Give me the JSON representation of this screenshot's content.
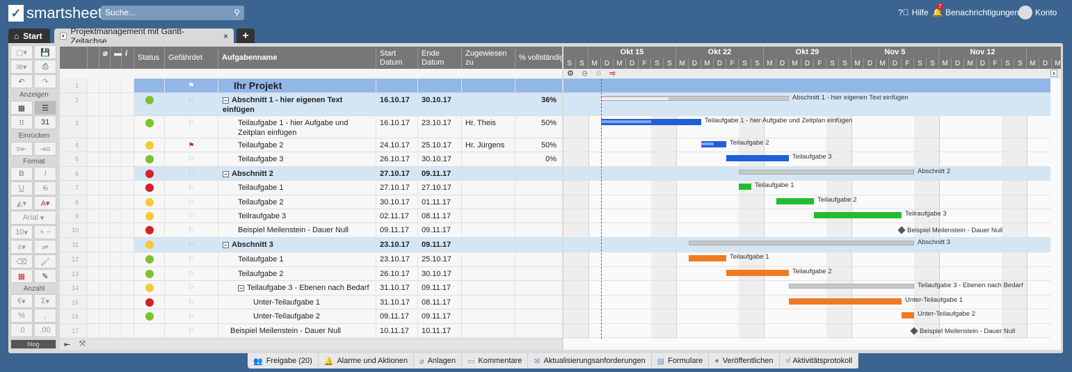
{
  "app": {
    "logo": "smartsheet",
    "search_placeholder": "Suche...",
    "help": "Hilfe",
    "notifications": "Benachrichtigungen",
    "notif_count": "7",
    "account": "Konto"
  },
  "tabs": {
    "home": "Start",
    "sheet": "Projektmanagement mit Gantt-Zeitachse",
    "close": "×",
    "add": "+"
  },
  "toolbar": {
    "view_label": "Anzeigen",
    "indent_label": "Einrücken",
    "format_label": "Format",
    "font": "Arial",
    "size": "10",
    "number_label": "Anzahl",
    "bold": "B",
    "italic": "I",
    "underline": "U",
    "strike": "S",
    "currency": "€",
    "sum": "Σ",
    "percent": "%",
    "comma": ",",
    "dec_less": ".0",
    "dec_more": ".00",
    "more": "blog"
  },
  "columns": {
    "status": "Status",
    "flag": "Gefährdet",
    "name": "Aufgabenname",
    "start": "Start Datum",
    "end": "Ende Datum",
    "assigned": "Zugewiesen zu",
    "pct": "% vollständig",
    "info": "i"
  },
  "colors": {
    "green": "#7dc12e",
    "yellow": "#f5c937",
    "red": "#d2232a",
    "blue": "#1f5fd9",
    "greenbar": "#22bb33",
    "orange": "#f07a22",
    "section": "#c8c8c8",
    "project_row": "#92b6e8",
    "section_row": "#d4e6f4"
  },
  "rows": [
    {
      "num": "1",
      "type": "project",
      "status": "",
      "flag": "white",
      "name": "Ihr Projekt",
      "level": 0,
      "start": "",
      "end": "",
      "assigned": "",
      "pct": ""
    },
    {
      "num": "2",
      "type": "section",
      "status": "green",
      "flag": "outline",
      "name": "Abschnitt 1 - hier eigenen Text einfügen",
      "level": 0,
      "start": "16.10.17",
      "end": "30.10.17",
      "assigned": "",
      "pct": "36%",
      "bar": "section",
      "progress": 0.36
    },
    {
      "num": "3",
      "type": "task",
      "status": "green",
      "flag": "outline",
      "name": "Teilaufgabe 1 - hier Aufgabe und Zeitplan einfügen",
      "level": 1,
      "start": "16.10.17",
      "end": "23.10.17",
      "assigned": "Hr. Theis",
      "pct": "50%",
      "bar": "blue",
      "progress": 0.5
    },
    {
      "num": "4",
      "type": "task",
      "status": "yellow",
      "flag": "red",
      "name": "Teilaufgabe 2",
      "level": 1,
      "start": "24.10.17",
      "end": "25.10.17",
      "assigned": "Hr. Jürgens",
      "pct": "50%",
      "bar": "blue",
      "progress": 0.5
    },
    {
      "num": "5",
      "type": "task",
      "status": "green",
      "flag": "outline",
      "name": "Teilaufgabe 3",
      "level": 1,
      "start": "26.10.17",
      "end": "30.10.17",
      "assigned": "",
      "pct": "0%",
      "bar": "blue",
      "progress": 0
    },
    {
      "num": "6",
      "type": "section",
      "status": "red",
      "flag": "outline",
      "name": "Abschnitt 2",
      "level": 0,
      "start": "27.10.17",
      "end": "09.11.17",
      "assigned": "",
      "pct": "",
      "bar": "section",
      "progress": 0
    },
    {
      "num": "7",
      "type": "task",
      "status": "red",
      "flag": "outline",
      "name": "Teilaufgabe 1",
      "level": 1,
      "start": "27.10.17",
      "end": "27.10.17",
      "assigned": "",
      "pct": "",
      "bar": "greenbar",
      "progress": 0
    },
    {
      "num": "8",
      "type": "task",
      "status": "yellow",
      "flag": "outline",
      "name": "Teilaufgabe 2",
      "level": 1,
      "start": "30.10.17",
      "end": "01.11.17",
      "assigned": "",
      "pct": "",
      "bar": "greenbar",
      "progress": 0
    },
    {
      "num": "9",
      "type": "task",
      "status": "yellow",
      "flag": "outline",
      "name": "Teilraufgabe 3",
      "level": 1,
      "start": "02.11.17",
      "end": "08.11.17",
      "assigned": "",
      "pct": "",
      "bar": "greenbar",
      "progress": 0
    },
    {
      "num": "10",
      "type": "milestone",
      "status": "red",
      "flag": "outline",
      "name": "Beispiel Meilenstein - Dauer Null",
      "level": 1,
      "start": "09.11.17",
      "end": "09.11.17",
      "assigned": "",
      "pct": "",
      "bar": "milestone"
    },
    {
      "num": "11",
      "type": "section",
      "status": "yellow",
      "flag": "outline",
      "name": "Abschnitt 3",
      "level": 0,
      "start": "23.10.17",
      "end": "09.11.17",
      "assigned": "",
      "pct": "",
      "bar": "section",
      "progress": 0
    },
    {
      "num": "12",
      "type": "task",
      "status": "green",
      "flag": "outline",
      "name": "Teilaufgabe 1",
      "level": 1,
      "start": "23.10.17",
      "end": "25.10.17",
      "assigned": "",
      "pct": "",
      "bar": "orange",
      "progress": 0
    },
    {
      "num": "13",
      "type": "task",
      "status": "green",
      "flag": "outline",
      "name": "Teilaufgabe 2",
      "level": 1,
      "start": "26.10.17",
      "end": "30.10.17",
      "assigned": "",
      "pct": "",
      "bar": "orange",
      "progress": 0
    },
    {
      "num": "14",
      "type": "subsection",
      "status": "yellow",
      "flag": "outline",
      "name": "Teilaufgabe 3 - Ebenen nach Bedarf",
      "level": 1,
      "start": "31.10.17",
      "end": "09.11.17",
      "assigned": "",
      "pct": "",
      "bar": "section",
      "progress": 0
    },
    {
      "num": "15",
      "type": "task",
      "status": "red",
      "flag": "outline",
      "name": "Unter-Teilaufgabe 1",
      "level": 2,
      "start": "31.10.17",
      "end": "08.11.17",
      "assigned": "",
      "pct": "",
      "bar": "orange",
      "progress": 0
    },
    {
      "num": "16",
      "type": "task",
      "status": "green",
      "flag": "outline",
      "name": "Unter-Teilaufgabe 2",
      "level": 2,
      "start": "09.11.17",
      "end": "09.11.17",
      "assigned": "",
      "pct": "",
      "bar": "orange",
      "progress": 0
    },
    {
      "num": "17",
      "type": "milestone",
      "status": "",
      "flag": "outline",
      "name": "Beispiel Meilenstein - Dauer Null",
      "level": 0.5,
      "start": "10.11.17",
      "end": "10.11.17",
      "assigned": "",
      "pct": "",
      "bar": "milestone"
    }
  ],
  "gantt": {
    "first_day": "13.10.17",
    "weeks": [
      "Okt 15",
      "Okt 22",
      "Okt 29",
      "Nov 5",
      "Nov 12"
    ],
    "day_letters": [
      "S",
      "M",
      "D",
      "M",
      "D",
      "F",
      "S"
    ],
    "today": "16.10.17",
    "close": "x"
  },
  "bottom": [
    {
      "label": "Freigabe (20)",
      "icon": "users-icon"
    },
    {
      "label": "Alarme und Aktionen",
      "icon": "bell-icon"
    },
    {
      "label": "Anlagen",
      "icon": "paperclip-icon"
    },
    {
      "label": "Kommentare",
      "icon": "comment-icon"
    },
    {
      "label": "Aktualisierungsanforderungen",
      "icon": "update-request-icon"
    },
    {
      "label": "Formulare",
      "icon": "form-icon"
    },
    {
      "label": "Veröffentlichen",
      "icon": "globe-icon"
    },
    {
      "label": "Aktivitätsprotokoll",
      "icon": "activity-icon"
    }
  ]
}
